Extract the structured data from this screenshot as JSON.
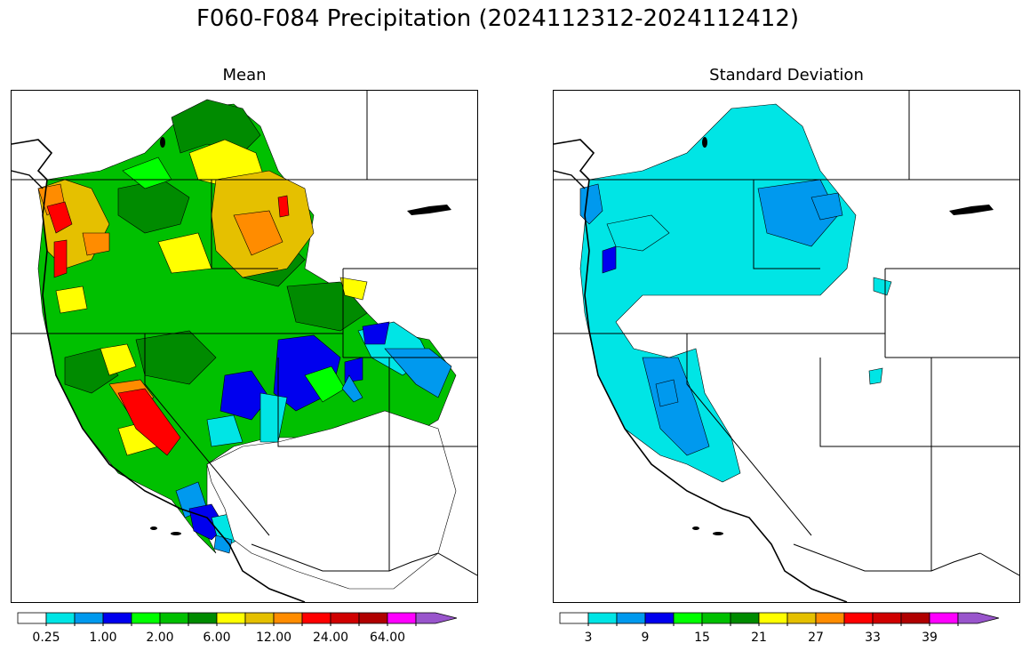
{
  "title": "F060-F084 Precipitation (2024112312-2024112412)",
  "panels": [
    {
      "id": "mean",
      "title": "Mean",
      "colorbar": {
        "colors": [
          "#ffffff",
          "#00e5e5",
          "#0099ee",
          "#0000ee",
          "#00ff00",
          "#00c000",
          "#008b00",
          "#ffff00",
          "#e5c000",
          "#ff8c00",
          "#ff0000",
          "#d00000",
          "#b00000",
          "#ff00ff",
          "#9955cc"
        ],
        "tick_labels": [
          "0.25",
          "1.00",
          "2.00",
          "6.00",
          "12.00",
          "24.00",
          "64.00"
        ],
        "extend": "max"
      }
    },
    {
      "id": "std",
      "title": "Standard Deviation",
      "colorbar": {
        "colors": [
          "#ffffff",
          "#00e5e5",
          "#0099ee",
          "#0000ee",
          "#00ff00",
          "#00c000",
          "#008b00",
          "#ffff00",
          "#e5c000",
          "#ff8c00",
          "#ff0000",
          "#d00000",
          "#b00000",
          "#ff00ff",
          "#9955cc"
        ],
        "tick_labels": [
          "3",
          "9",
          "15",
          "21",
          "27",
          "33",
          "39"
        ],
        "extend": "max"
      }
    }
  ]
}
